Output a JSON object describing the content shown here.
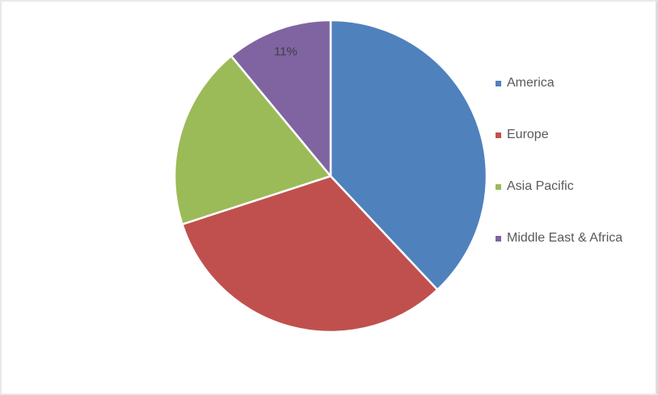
{
  "chart_data": {
    "type": "pie",
    "title": "",
    "slices": [
      {
        "name": "America",
        "value": 38,
        "color": "#4F81BD",
        "label": ""
      },
      {
        "name": "Europe",
        "value": 32,
        "color": "#C0504D",
        "label": ""
      },
      {
        "name": "Asia Pacific",
        "value": 19,
        "color": "#9BBB59",
        "label": ""
      },
      {
        "name": "Middle East & Africa",
        "value": 11,
        "color": "#8064A2",
        "label": "11%"
      }
    ],
    "unit": "%",
    "start_angle_deg": 0,
    "direction": "clockwise",
    "legend_position": "right",
    "visible_data_labels": [
      "11%"
    ],
    "colors": {
      "data_label_text": "#3F3F3F",
      "legend_text": "#595959",
      "slice_separator": "#FFFFFF",
      "background": "#FFFFFF"
    }
  }
}
